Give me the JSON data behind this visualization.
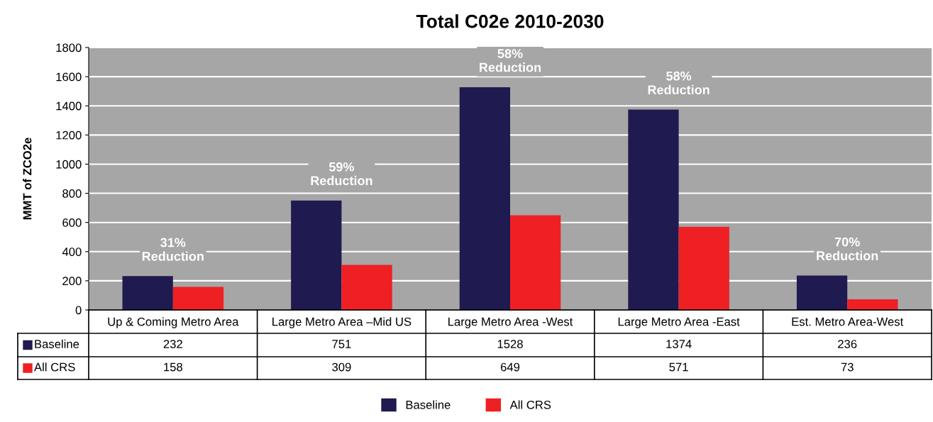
{
  "chart_data": {
    "type": "bar",
    "title": "Total C02e 2010-2030",
    "ylabel": "MMT of ZCO2e",
    "categories": [
      "Up & Coming Metro Area",
      "Large Metro Area –Mid US",
      "Large Metro Area -West",
      "Large Metro Area -East",
      "Est. Metro Area-West"
    ],
    "series": [
      {
        "name": "Baseline",
        "color": "#1f1a4f",
        "values": [
          232,
          751,
          1528,
          1374,
          236
        ]
      },
      {
        "name": "All CRS",
        "color": "#ee2024",
        "values": [
          158,
          309,
          649,
          571,
          73
        ]
      }
    ],
    "ylim": [
      0,
      1800
    ],
    "yticks": [
      0,
      200,
      400,
      600,
      800,
      1000,
      1200,
      1400,
      1600,
      1800
    ],
    "grid": "y",
    "legend": "bottom",
    "data_labels": true,
    "annotations": [
      "31%\nReduction",
      "59%\nReduction",
      "58%\nReduction",
      "58%\nReduction",
      "70%\nReduction"
    ]
  }
}
